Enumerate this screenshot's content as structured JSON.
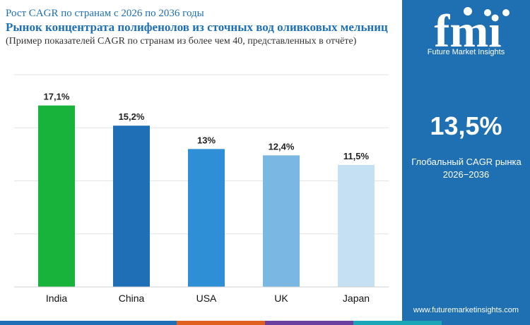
{
  "header": {
    "kicker": "Рост CAGR по странам с 2026 по 2036 годы",
    "title": "Рынок концентрата полифенолов из сточных вод оливковых мельниц",
    "subtitle": "(Пример показателей CAGR по странам из более чем 40, представленных в отчёте)"
  },
  "chart_data": {
    "type": "bar",
    "categories": [
      "India",
      "China",
      "USA",
      "UK",
      "Japan"
    ],
    "values": [
      17.1,
      15.2,
      13,
      12.4,
      11.5
    ],
    "value_labels": [
      "17,1%",
      "15,2%",
      "13%",
      "12,4%",
      "11,5%"
    ],
    "bar_colors": [
      "#18b33a",
      "#1e6fb5",
      "#2f8fd6",
      "#7bb7e3",
      "#c4e0f2"
    ],
    "ylim": [
      0,
      20
    ],
    "grid": true,
    "legend": "none"
  },
  "sidebar": {
    "brand_name": "Future Market Insights",
    "global_cagr_value": "13,5%",
    "global_cagr_label": "Глобальный CAGR рынка",
    "global_cagr_period": "2026−2036",
    "website": "www.futuremarketinsights.com",
    "background_color": "#1f6fb3"
  },
  "bottom_strip_colors": [
    "#1e6fb5",
    "#1e6fb5",
    "#e0601f",
    "#6b3fa0",
    "#1aa6b7",
    "#1f6fb3"
  ]
}
